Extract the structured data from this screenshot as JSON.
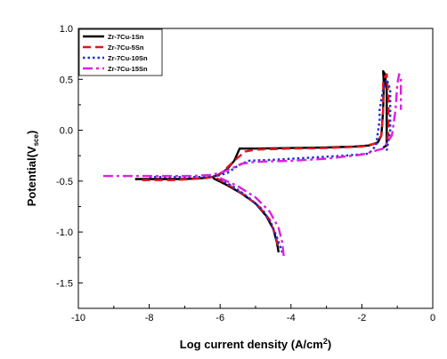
{
  "chart_data": {
    "type": "line",
    "xlabel": {
      "main": "Log current density (A/cm",
      "sup": "2",
      "end": ")"
    },
    "ylabel": {
      "main": "Potential(V",
      "sub": "sce",
      "end": ")"
    },
    "xlim": [
      -10,
      0
    ],
    "ylim": [
      -1.75,
      1.0
    ],
    "xticks": [
      -10,
      -8,
      -6,
      -4,
      -2,
      0
    ],
    "xtick_labels": [
      "-10",
      "-8",
      "-6",
      "-4",
      "-2",
      "0"
    ],
    "yticks": [
      1.0,
      0.5,
      0.0,
      -0.5,
      -1.0,
      -1.5
    ],
    "ytick_labels": [
      "1.0",
      "0.5",
      "0.0",
      "-0.5",
      "-1.0",
      "-1.5"
    ],
    "grid": false,
    "legend_position": "top-left",
    "series": [
      {
        "name": "Zr-7Cu-1Sn",
        "color": "#000000",
        "dash": "solid",
        "points": [
          [
            -8.4,
            -0.48
          ],
          [
            -8.0,
            -0.48
          ],
          [
            -7.5,
            -0.48
          ],
          [
            -7.0,
            -0.48
          ],
          [
            -6.5,
            -0.47
          ],
          [
            -6.2,
            -0.46
          ],
          [
            -6.0,
            -0.43
          ],
          [
            -5.8,
            -0.38
          ],
          [
            -5.6,
            -0.3
          ],
          [
            -5.45,
            -0.18
          ],
          [
            -5.0,
            -0.18
          ],
          [
            -4.0,
            -0.175
          ],
          [
            -3.0,
            -0.17
          ],
          [
            -2.2,
            -0.16
          ],
          [
            -1.8,
            -0.15
          ],
          [
            -1.55,
            -0.12
          ],
          [
            -1.45,
            -0.05
          ],
          [
            -1.4,
            0.2
          ],
          [
            -1.38,
            0.45
          ],
          [
            -1.4,
            0.58
          ],
          [
            -1.35,
            0.55
          ],
          [
            -1.3,
            0.4
          ],
          [
            -1.3,
            0.1
          ],
          [
            -1.3,
            -0.15
          ],
          [
            -1.4,
            -0.17
          ]
        ],
        "points_cathodic": [
          [
            -6.2,
            -0.47
          ],
          [
            -5.8,
            -0.54
          ],
          [
            -5.4,
            -0.62
          ],
          [
            -5.0,
            -0.72
          ],
          [
            -4.7,
            -0.84
          ],
          [
            -4.5,
            -0.97
          ],
          [
            -4.4,
            -1.1
          ],
          [
            -4.35,
            -1.2
          ]
        ]
      },
      {
        "name": "Zr-7Cu-5Sn",
        "color": "#e8141c",
        "dash": "long",
        "points": [
          [
            -8.2,
            -0.49
          ],
          [
            -7.8,
            -0.49
          ],
          [
            -7.3,
            -0.49
          ],
          [
            -6.8,
            -0.48
          ],
          [
            -6.4,
            -0.47
          ],
          [
            -6.1,
            -0.45
          ],
          [
            -5.9,
            -0.4
          ],
          [
            -5.6,
            -0.3
          ],
          [
            -5.3,
            -0.21
          ],
          [
            -5.0,
            -0.19
          ],
          [
            -4.0,
            -0.18
          ],
          [
            -3.0,
            -0.175
          ],
          [
            -2.0,
            -0.16
          ],
          [
            -1.6,
            -0.13
          ],
          [
            -1.45,
            -0.05
          ],
          [
            -1.4,
            0.2
          ],
          [
            -1.4,
            0.5
          ],
          [
            -1.3,
            0.55
          ],
          [
            -1.25,
            0.3
          ],
          [
            -1.25,
            0.0
          ],
          [
            -1.3,
            -0.15
          ]
        ],
        "points_cathodic": [
          [
            -6.1,
            -0.47
          ],
          [
            -5.7,
            -0.55
          ],
          [
            -5.3,
            -0.64
          ],
          [
            -4.9,
            -0.75
          ],
          [
            -4.6,
            -0.88
          ],
          [
            -4.45,
            -1.02
          ],
          [
            -4.35,
            -1.15
          ]
        ]
      },
      {
        "name": "Zr-7Cu-10Sn",
        "color": "#1a2fd6",
        "dash": "dot",
        "points": [
          [
            -8.0,
            -0.46
          ],
          [
            -7.5,
            -0.46
          ],
          [
            -7.0,
            -0.46
          ],
          [
            -6.5,
            -0.46
          ],
          [
            -6.1,
            -0.45
          ],
          [
            -5.8,
            -0.42
          ],
          [
            -5.5,
            -0.35
          ],
          [
            -5.2,
            -0.3
          ],
          [
            -4.5,
            -0.29
          ],
          [
            -3.5,
            -0.27
          ],
          [
            -2.5,
            -0.25
          ],
          [
            -1.8,
            -0.23
          ],
          [
            -1.6,
            -0.15
          ],
          [
            -1.5,
            0.1
          ],
          [
            -1.5,
            0.2
          ],
          [
            -1.4,
            0.4
          ],
          [
            -1.3,
            0.5
          ],
          [
            -1.2,
            0.4
          ],
          [
            -1.2,
            0.0
          ],
          [
            -1.3,
            -0.2
          ]
        ],
        "points_cathodic": [
          [
            -6.0,
            -0.48
          ],
          [
            -5.6,
            -0.56
          ],
          [
            -5.2,
            -0.66
          ],
          [
            -4.8,
            -0.78
          ],
          [
            -4.55,
            -0.92
          ],
          [
            -4.4,
            -1.05
          ],
          [
            -4.25,
            -1.2
          ]
        ]
      },
      {
        "name": "Zr-7Cu-15Sn",
        "color": "#e020e0",
        "dash": "dashdot",
        "points": [
          [
            -9.3,
            -0.45
          ],
          [
            -8.5,
            -0.45
          ],
          [
            -7.5,
            -0.45
          ],
          [
            -6.8,
            -0.45
          ],
          [
            -6.3,
            -0.44
          ],
          [
            -6.0,
            -0.42
          ],
          [
            -5.7,
            -0.38
          ],
          [
            -5.4,
            -0.33
          ],
          [
            -5.0,
            -0.31
          ],
          [
            -4.0,
            -0.3
          ],
          [
            -3.0,
            -0.28
          ],
          [
            -2.0,
            -0.24
          ],
          [
            -1.4,
            -0.18
          ],
          [
            -1.15,
            -0.05
          ],
          [
            -1.05,
            0.2
          ],
          [
            -1.0,
            0.45
          ],
          [
            -0.95,
            0.55
          ],
          [
            -0.9,
            0.5
          ],
          [
            -0.9,
            0.2
          ]
        ],
        "points_cathodic": [
          [
            -6.0,
            -0.47
          ],
          [
            -5.5,
            -0.55
          ],
          [
            -5.0,
            -0.66
          ],
          [
            -4.6,
            -0.8
          ],
          [
            -4.35,
            -0.96
          ],
          [
            -4.25,
            -1.1
          ],
          [
            -4.2,
            -1.25
          ]
        ]
      }
    ]
  }
}
